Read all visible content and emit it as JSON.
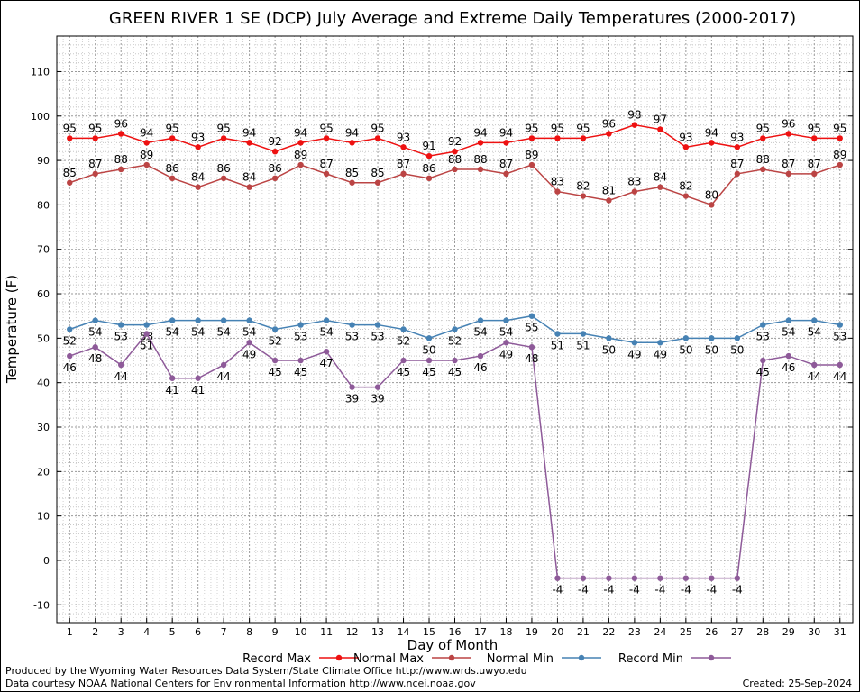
{
  "chart_data": {
    "type": "line",
    "title": "GREEN RIVER 1 SE (DCP) July Average and Extreme Daily Temperatures (2000-2017)",
    "xlabel": "Day of Month",
    "ylabel": "Temperature (F)",
    "ylim": [
      -14,
      118
    ],
    "xlim": [
      0.5,
      31.5
    ],
    "yticks": [
      -10,
      0,
      10,
      20,
      30,
      40,
      50,
      60,
      70,
      80,
      90,
      100,
      110
    ],
    "grid": true,
    "legend_position": "bottom",
    "x": [
      1,
      2,
      3,
      4,
      5,
      6,
      7,
      8,
      9,
      10,
      11,
      12,
      13,
      14,
      15,
      16,
      17,
      18,
      19,
      20,
      21,
      22,
      23,
      24,
      25,
      26,
      27,
      28,
      29,
      30,
      31
    ],
    "series": [
      {
        "name": "Record Max",
        "color": "#ee1111",
        "label_pos": "above",
        "values": [
          95,
          95,
          96,
          94,
          95,
          93,
          95,
          94,
          92,
          94,
          95,
          94,
          95,
          93,
          91,
          92,
          94,
          94,
          95,
          95,
          95,
          96,
          98,
          97,
          93,
          94,
          93,
          95,
          96,
          95,
          95
        ]
      },
      {
        "name": "Normal Max",
        "color": "#bb4444",
        "label_pos": "above",
        "values": [
          85,
          87,
          88,
          89,
          86,
          84,
          86,
          84,
          86,
          89,
          87,
          85,
          85,
          87,
          86,
          88,
          88,
          87,
          89,
          83,
          82,
          81,
          83,
          84,
          82,
          80,
          87,
          88,
          87,
          87,
          89
        ]
      },
      {
        "name": "Normal Min",
        "color": "#4682b4",
        "label_pos": "below",
        "values": [
          52,
          54,
          53,
          53,
          54,
          54,
          54,
          54,
          52,
          53,
          54,
          53,
          53,
          52,
          50,
          52,
          54,
          54,
          55,
          51,
          51,
          50,
          49,
          49,
          50,
          50,
          50,
          53,
          54,
          54,
          53
        ]
      },
      {
        "name": "Record Min",
        "color": "#8e5a99",
        "label_pos": "below",
        "values": [
          46,
          48,
          44,
          51,
          41,
          41,
          44,
          49,
          45,
          45,
          47,
          39,
          39,
          45,
          45,
          45,
          46,
          49,
          48,
          -4,
          -4,
          -4,
          -4,
          -4,
          -4,
          -4,
          -4,
          45,
          46,
          44,
          44
        ]
      }
    ]
  },
  "footer": {
    "left_line1": "Produced by the Wyoming Water Resources Data System/State Climate Office http://www.wrds.uwyo.edu",
    "left_line2": "Data courtesy NOAA National Centers for Environmental Information http://www.ncei.noaa.gov",
    "right": "Created:  25-Sep-2024"
  }
}
